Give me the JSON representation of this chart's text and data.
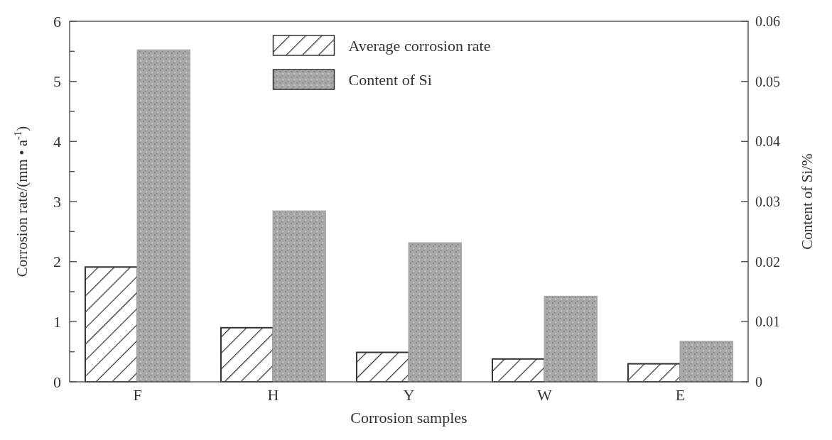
{
  "chart_data": {
    "type": "bar",
    "xlabel": "Corrosion samples",
    "ylabel": "Corrosion rate/(mm • a$^{-1}$)",
    "y2label": "Content of Si/%",
    "categories": [
      "F",
      "H",
      "Y",
      "W",
      "E"
    ],
    "series": [
      {
        "name": "Average corrosion rate",
        "color": "#333333",
        "values": [
          1.91,
          0.9,
          0.49,
          0.38,
          0.3
        ]
      },
      {
        "name": "Content of Si",
        "color": "#a8a8a8",
        "axis": "y2",
        "values": [
          0.0552,
          0.0284,
          0.0231,
          0.0142,
          0.0067
        ]
      }
    ],
    "ylim": [
      0,
      6
    ],
    "yticks": [
      0,
      {
        "value": 0.5,
        "label": null
      },
      1,
      {
        "value": 1.5,
        "label": null
      },
      2,
      {
        "value": 2.5,
        "label": null
      },
      3,
      {
        "value": 3.5,
        "label": null
      },
      4,
      {
        "value": 4.5,
        "label": null
      },
      5,
      {
        "value": 5.5,
        "label": null
      },
      6
    ],
    "y2lim": [
      0,
      0.06
    ],
    "y2ticks": [
      0,
      0.01,
      0.02,
      0.03,
      0.04,
      0.05,
      0.06
    ],
    "legend": "top",
    "grid": false
  }
}
